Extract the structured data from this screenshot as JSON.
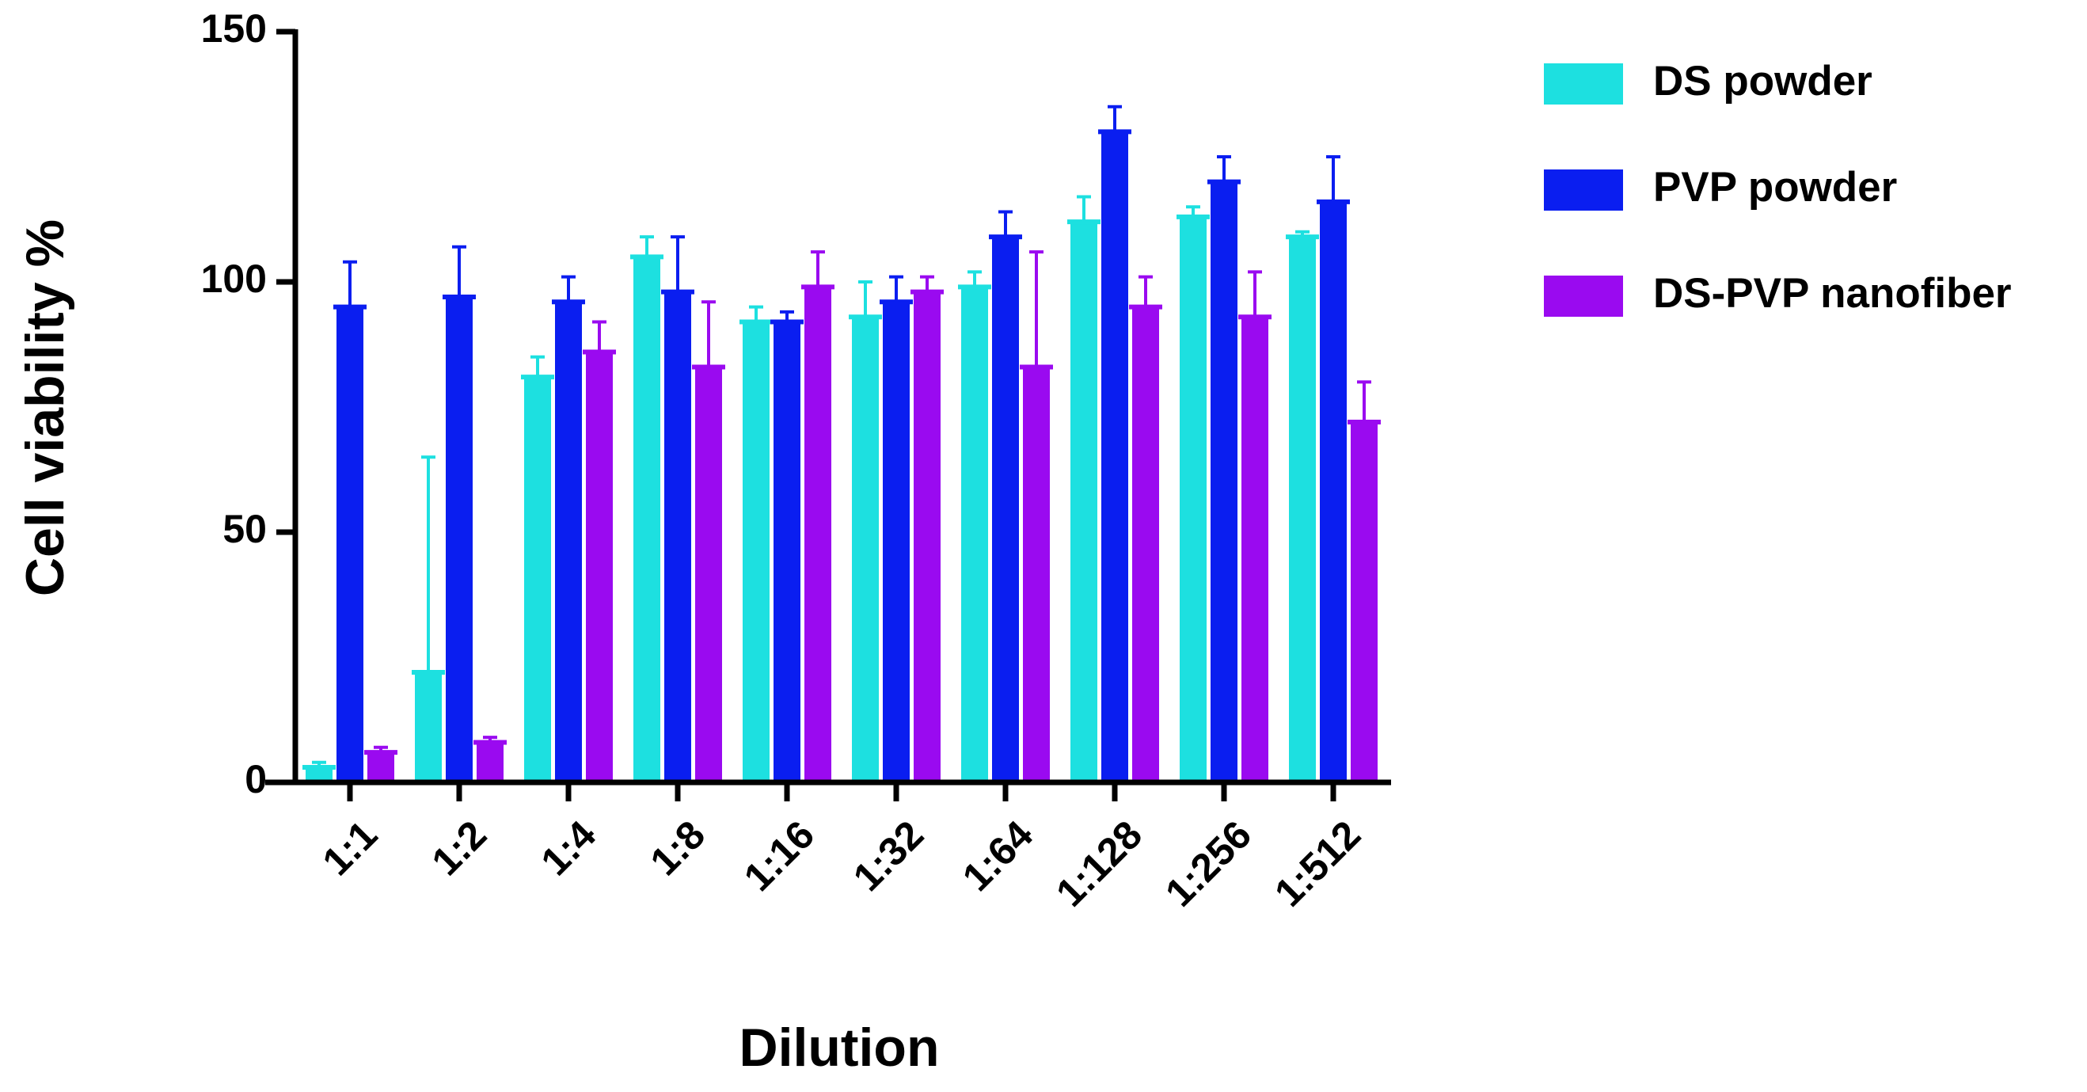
{
  "chart_data": {
    "type": "bar",
    "x_label": "Dilution",
    "y_label": "Cell viability %",
    "categories": [
      "1:1",
      "1:2",
      "1:4",
      "1:8",
      "1:16",
      "1:32",
      "1:64",
      "1:128",
      "1:256",
      "1:512"
    ],
    "series": [
      {
        "name": "DS powder",
        "color": "#1de0e0",
        "values": [
          3,
          22,
          81,
          105,
          92,
          93,
          99,
          112,
          113,
          109
        ],
        "errors": [
          1,
          43,
          4,
          4,
          3,
          7,
          3,
          5,
          2,
          1
        ]
      },
      {
        "name": "PVP powder",
        "color": "#0a1ef0",
        "values": [
          95,
          97,
          96,
          98,
          92,
          96,
          109,
          130,
          120,
          116
        ],
        "errors": [
          9,
          10,
          5,
          11,
          2,
          5,
          5,
          5,
          5,
          9
        ]
      },
      {
        "name": "DS-PVP nanofiber",
        "color": "#9a0af0",
        "values": [
          6,
          8,
          86,
          83,
          99,
          98,
          83,
          95,
          93,
          72
        ],
        "errors": [
          1,
          1,
          6,
          13,
          7,
          3,
          23,
          6,
          9,
          8
        ]
      }
    ],
    "ylim": [
      0,
      150
    ],
    "yticks": [
      0,
      50,
      100,
      150
    ],
    "legend": "right"
  }
}
